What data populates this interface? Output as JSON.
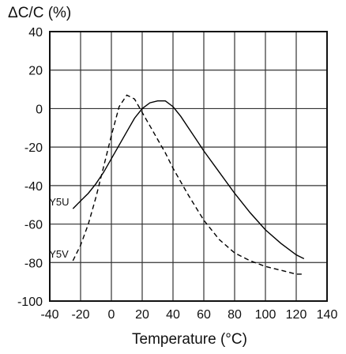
{
  "chart_data": {
    "type": "line",
    "title": "",
    "ylabel": "ΔC/C (%)",
    "xlabel": "Temperature (°C)",
    "xlim": [
      -40,
      140
    ],
    "ylim": [
      -100,
      40
    ],
    "xticks": [
      -40,
      -20,
      0,
      20,
      40,
      60,
      80,
      100,
      120,
      140
    ],
    "yticks": [
      40,
      20,
      0,
      -20,
      -40,
      -60,
      -80,
      -100
    ],
    "grid": true,
    "legend": "none",
    "series": [
      {
        "name": "Y5U",
        "style": "solid",
        "color": "#000000",
        "x": [
          -25,
          -20,
          -15,
          -10,
          -5,
          0,
          5,
          10,
          15,
          20,
          25,
          30,
          35,
          40,
          45,
          50,
          55,
          60,
          70,
          80,
          90,
          100,
          110,
          120,
          125
        ],
        "y": [
          -52,
          -48,
          -44,
          -39,
          -33,
          -26,
          -19,
          -12,
          -5,
          0,
          3,
          4,
          4,
          1,
          -4,
          -10,
          -16,
          -22,
          -33,
          -44,
          -54,
          -63,
          -70,
          -76,
          -78
        ]
      },
      {
        "name": "Y5V",
        "style": "dashed",
        "color": "#000000",
        "x": [
          -25,
          -20,
          -15,
          -10,
          -5,
          0,
          5,
          10,
          15,
          20,
          25,
          30,
          35,
          40,
          50,
          60,
          70,
          80,
          90,
          100,
          110,
          120,
          125
        ],
        "y": [
          -79,
          -71,
          -60,
          -46,
          -30,
          -14,
          1,
          7,
          5,
          -2,
          -9,
          -16,
          -23,
          -31,
          -45,
          -58,
          -68,
          -75,
          -79,
          -82,
          -84,
          -86,
          -86
        ]
      }
    ]
  }
}
